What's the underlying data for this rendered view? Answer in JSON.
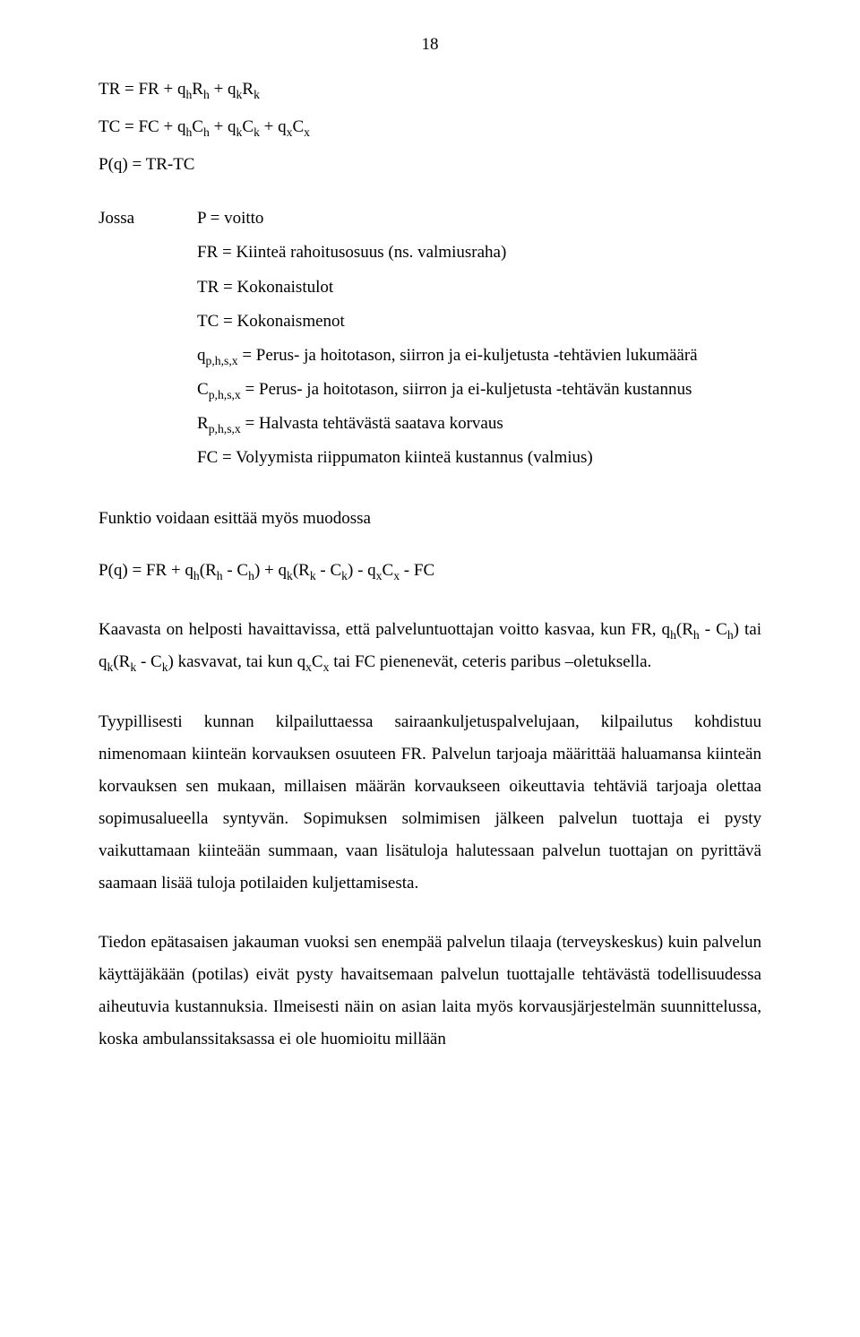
{
  "page_number": "18",
  "eq1": "TR = FR + q<sub>h</sub>R<sub>h</sub> + q<sub>k</sub>R<sub>k</sub>",
  "eq2": "TC = FC + q<sub>h</sub>C<sub>h</sub> + q<sub>k</sub>C<sub>k</sub> + q<sub>x</sub>C<sub>x</sub>",
  "eq3": "P(q) = TR-TC",
  "where_label": "Jossa",
  "defs": [
    "P = voitto",
    "FR = Kiinteä rahoitusosuus (ns. valmiusraha)",
    "TR = Kokonaistulot",
    "TC = Kokonaismenot",
    "q<sub>p,h,s,x</sub> = Perus- ja hoitotason, siirron ja ei-kuljetusta -tehtävien lukumäärä",
    "C<sub>p,h,s,x</sub> = Perus- ja hoitotason, siirron ja ei-kuljetusta -tehtävän kustannus",
    "R<sub>p,h,s,x</sub> = Halvasta tehtävästä saatava korvaus",
    "FC = Volyymista riippumaton kiinteä kustannus (valmius)"
  ],
  "func_intro": "Funktio voidaan esittää myös muodossa",
  "func_eq": "P(q) = FR + q<sub>h</sub>(R<sub>h</sub> - C<sub>h</sub>) + q<sub>k</sub>(R<sub>k</sub> - C<sub>k</sub>) - q<sub>x</sub>C<sub>x</sub> - FC",
  "para1": "Kaavasta on helposti havaittavissa, että palveluntuottajan voitto kasvaa, kun FR, q<sub>h</sub>(R<sub>h</sub> - C<sub>h</sub>) tai q<sub>k</sub>(R<sub>k</sub> - C<sub>k</sub>) kasvavat, tai kun q<sub>x</sub>C<sub>x</sub> tai FC pienenevät, ceteris paribus –oletuksella.",
  "para2": "Tyypillisesti kunnan kilpailuttaessa sairaankuljetuspalvelujaan, kilpailutus kohdistuu nimenomaan kiinteän korvauksen osuuteen FR. Palvelun tarjoaja määrittää haluamansa kiinteän korvauksen sen mukaan, millaisen määrän korvaukseen oikeuttavia tehtäviä tarjoaja olettaa sopimusalueella syntyvän. Sopimuksen solmimisen jälkeen palvelun tuottaja ei pysty vaikuttamaan kiinteään summaan, vaan lisätuloja halutessaan palvelun tuottajan on pyrittävä saamaan lisää tuloja potilaiden kuljettamisesta.",
  "para3": "Tiedon epätasaisen jakauman vuoksi sen enempää palvelun tilaaja (terveyskeskus) kuin palvelun käyttäjäkään (potilas) eivät pysty havaitsemaan palvelun tuottajalle tehtävästä todellisuudessa aiheutuvia kustannuksia. Ilmeisesti näin on asian laita myös korvausjärjestelmän suunnittelussa, koska ambulanssitaksassa ei ole huomioitu millään"
}
